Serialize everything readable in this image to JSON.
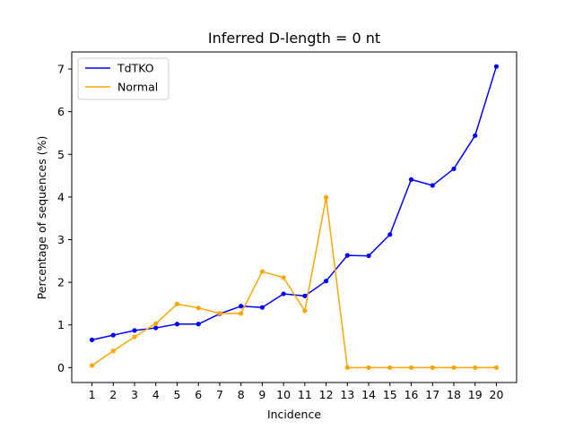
{
  "chart_data": {
    "type": "line",
    "title": "Inferred D-length = 0 nt",
    "xlabel": "Incidence",
    "ylabel": "Percentage of sequences (%)",
    "x": [
      1,
      2,
      3,
      4,
      5,
      6,
      7,
      8,
      9,
      10,
      11,
      12,
      13,
      14,
      15,
      16,
      17,
      18,
      19,
      20
    ],
    "xlim": [
      0.05,
      20.95
    ],
    "ylim": [
      -0.35,
      7.4
    ],
    "yticks": [
      0,
      1,
      2,
      3,
      4,
      5,
      6,
      7
    ],
    "grid": false,
    "legend_position": "top-left",
    "series": [
      {
        "name": "TdTKO",
        "color": "#0000ff",
        "values": [
          0.65,
          0.76,
          0.87,
          0.93,
          1.02,
          1.02,
          1.26,
          1.44,
          1.41,
          1.73,
          1.68,
          2.03,
          2.63,
          2.62,
          3.12,
          4.41,
          4.27,
          4.66,
          5.44,
          7.06
        ]
      },
      {
        "name": "Normal",
        "color": "#ffa500",
        "values": [
          0.05,
          0.39,
          0.72,
          1.03,
          1.49,
          1.4,
          1.27,
          1.27,
          2.25,
          2.11,
          1.33,
          3.99,
          0.0,
          0.0,
          0.0,
          0.0,
          0.0,
          0.0,
          0.0,
          0.0
        ]
      }
    ]
  }
}
